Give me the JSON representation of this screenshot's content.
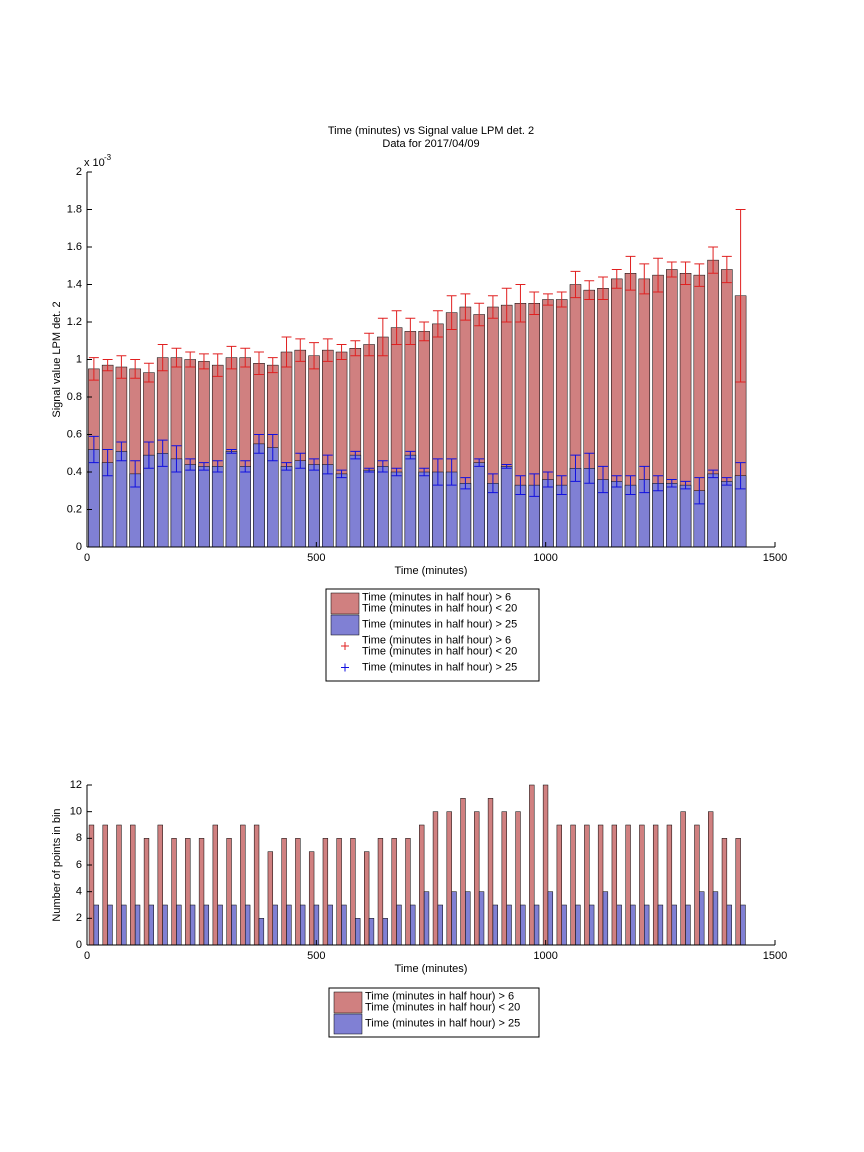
{
  "chart_data": [
    {
      "type": "bar",
      "barmode": "overlay",
      "title": "Time (minutes) vs Signal value LPM det. 2",
      "subtitle": "Data for 2017/04/09",
      "axis_multiplier": "x 10",
      "axis_exponent": "-3",
      "xlabel": "Time (minutes)",
      "ylabel": "Signal value LPM det. 2",
      "x": [
        15,
        45,
        75,
        105,
        135,
        165,
        195,
        225,
        255,
        285,
        315,
        345,
        375,
        405,
        435,
        465,
        495,
        525,
        555,
        585,
        615,
        645,
        675,
        705,
        735,
        765,
        795,
        825,
        855,
        885,
        915,
        945,
        975,
        1005,
        1035,
        1065,
        1095,
        1125,
        1155,
        1185,
        1215,
        1245,
        1275,
        1305,
        1335,
        1365,
        1395,
        1425
      ],
      "xlim": [
        0,
        1500
      ],
      "xticks": [
        0,
        500,
        1000,
        1500
      ],
      "ylim": [
        0,
        2
      ],
      "yticks": [
        0,
        0.2,
        0.4,
        0.6,
        0.8,
        1,
        1.2,
        1.4,
        1.6,
        1.8,
        2
      ],
      "series": [
        {
          "name": "Time (minutes in half hour) > 6\nTime (minutes in half hour) < 20",
          "color": "#d08080",
          "error_color": "#e02020",
          "values": [
            0.95,
            0.97,
            0.96,
            0.95,
            0.93,
            1.01,
            1.01,
            1.0,
            0.99,
            0.97,
            1.01,
            1.01,
            0.98,
            0.97,
            1.04,
            1.05,
            1.02,
            1.05,
            1.04,
            1.06,
            1.08,
            1.12,
            1.17,
            1.15,
            1.15,
            1.19,
            1.25,
            1.28,
            1.24,
            1.28,
            1.29,
            1.3,
            1.3,
            1.32,
            1.32,
            1.4,
            1.37,
            1.38,
            1.43,
            1.46,
            1.43,
            1.45,
            1.48,
            1.46,
            1.45,
            1.53,
            1.48,
            1.34
          ],
          "errors": [
            0.06,
            0.03,
            0.06,
            0.05,
            0.05,
            0.07,
            0.05,
            0.04,
            0.04,
            0.06,
            0.06,
            0.05,
            0.06,
            0.04,
            0.08,
            0.06,
            0.07,
            0.06,
            0.04,
            0.04,
            0.06,
            0.1,
            0.09,
            0.07,
            0.05,
            0.07,
            0.09,
            0.07,
            0.06,
            0.06,
            0.09,
            0.1,
            0.06,
            0.03,
            0.04,
            0.07,
            0.05,
            0.06,
            0.05,
            0.09,
            0.08,
            0.09,
            0.04,
            0.06,
            0.06,
            0.07,
            0.07,
            0.46
          ]
        },
        {
          "name": "Time (minutes in half hour) > 25",
          "color": "#8080d4",
          "error_color": "#1010e0",
          "values": [
            0.52,
            0.45,
            0.51,
            0.39,
            0.49,
            0.5,
            0.47,
            0.44,
            0.43,
            0.43,
            0.51,
            0.43,
            0.55,
            0.53,
            0.43,
            0.46,
            0.44,
            0.44,
            0.39,
            0.49,
            0.41,
            0.43,
            0.4,
            0.49,
            0.4,
            0.4,
            0.4,
            0.34,
            0.45,
            0.34,
            0.43,
            0.33,
            0.33,
            0.36,
            0.33,
            0.42,
            0.42,
            0.36,
            0.35,
            0.33,
            0.36,
            0.34,
            0.34,
            0.33,
            0.3,
            0.39,
            0.35,
            0.38
          ],
          "errors": [
            0.07,
            0.07,
            0.05,
            0.07,
            0.07,
            0.07,
            0.07,
            0.03,
            0.02,
            0.03,
            0.01,
            0.03,
            0.05,
            0.07,
            0.02,
            0.04,
            0.03,
            0.05,
            0.02,
            0.02,
            0.01,
            0.03,
            0.02,
            0.02,
            0.02,
            0.07,
            0.07,
            0.03,
            0.02,
            0.05,
            0.01,
            0.05,
            0.06,
            0.04,
            0.05,
            0.07,
            0.08,
            0.07,
            0.03,
            0.05,
            0.07,
            0.04,
            0.02,
            0.02,
            0.07,
            0.02,
            0.02,
            0.07
          ]
        }
      ]
    },
    {
      "type": "bar",
      "barmode": "grouped",
      "xlabel": "Time (minutes)",
      "ylabel": "Number of points in bin",
      "x": [
        15,
        45,
        75,
        105,
        135,
        165,
        195,
        225,
        255,
        285,
        315,
        345,
        375,
        405,
        435,
        465,
        495,
        525,
        555,
        585,
        615,
        645,
        675,
        705,
        735,
        765,
        795,
        825,
        855,
        885,
        915,
        945,
        975,
        1005,
        1035,
        1065,
        1095,
        1125,
        1155,
        1185,
        1215,
        1245,
        1275,
        1305,
        1335,
        1365,
        1395,
        1425
      ],
      "xlim": [
        0,
        1500
      ],
      "xticks": [
        0,
        500,
        1000,
        1500
      ],
      "ylim": [
        0,
        12
      ],
      "yticks": [
        0,
        2,
        4,
        6,
        8,
        10,
        12
      ],
      "series": [
        {
          "name": "Time (minutes in half hour) > 6\nTime (minutes in half hour) < 20",
          "color": "#d08080",
          "values": [
            9,
            9,
            9,
            9,
            8,
            9,
            8,
            8,
            8,
            9,
            8,
            9,
            9,
            7,
            8,
            8,
            7,
            8,
            8,
            8,
            7,
            8,
            8,
            8,
            9,
            10,
            10,
            11,
            10,
            11,
            10,
            10,
            12,
            12,
            9,
            9,
            9,
            9,
            9,
            9,
            9,
            9,
            9,
            10,
            9,
            10,
            8,
            8
          ]
        },
        {
          "name": "Time (minutes in half hour) > 25",
          "color": "#8080d4",
          "values": [
            3,
            3,
            3,
            3,
            3,
            3,
            3,
            3,
            3,
            3,
            3,
            3,
            2,
            3,
            3,
            3,
            3,
            3,
            3,
            2,
            2,
            2,
            3,
            3,
            4,
            3,
            4,
            4,
            4,
            3,
            3,
            3,
            3,
            4,
            3,
            3,
            3,
            4,
            3,
            3,
            3,
            3,
            3,
            3,
            4,
            4,
            3,
            3
          ]
        }
      ]
    }
  ]
}
